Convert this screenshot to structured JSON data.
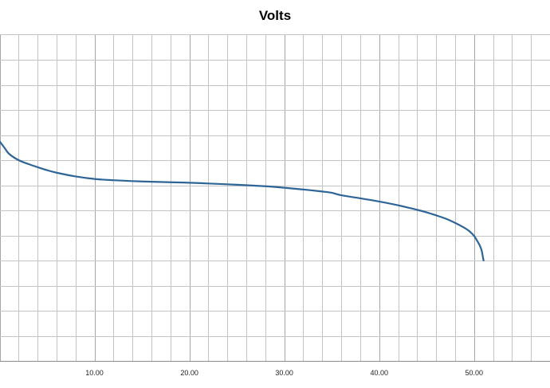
{
  "chart_data": {
    "type": "line",
    "title": "Volts",
    "xlabel": "",
    "ylabel": "",
    "grid": true,
    "xlim": [
      0,
      58
    ],
    "ylim": [
      0,
      13
    ],
    "x_ticks": [
      10,
      20,
      30,
      40,
      50
    ],
    "x_tick_labels": [
      "10.00",
      "20.00",
      "30.00",
      "40.00",
      "50.00"
    ],
    "x_minor_step": 2,
    "y_gridlines": [
      1,
      2,
      3,
      4,
      5,
      6,
      7,
      8,
      9,
      10,
      11,
      12
    ],
    "series": [
      {
        "color": "#2e6596",
        "x": [
          0,
          0.5,
          1,
          2,
          3,
          4,
          5,
          6,
          8,
          10,
          12,
          15,
          18,
          20,
          22,
          25,
          28,
          30,
          32,
          34,
          35,
          36,
          38,
          40,
          42,
          44,
          45,
          46,
          47,
          48,
          49,
          49.5,
          50,
          50.3,
          50.6,
          50.8,
          50.9,
          51.0
        ],
        "y": [
          8.75,
          8.5,
          8.25,
          8.0,
          7.85,
          7.72,
          7.6,
          7.5,
          7.35,
          7.25,
          7.2,
          7.15,
          7.12,
          7.1,
          7.07,
          7.02,
          6.96,
          6.9,
          6.83,
          6.75,
          6.7,
          6.6,
          6.48,
          6.35,
          6.2,
          6.02,
          5.92,
          5.8,
          5.67,
          5.5,
          5.3,
          5.17,
          4.98,
          4.8,
          4.6,
          4.4,
          4.2,
          4.0
        ]
      }
    ]
  }
}
